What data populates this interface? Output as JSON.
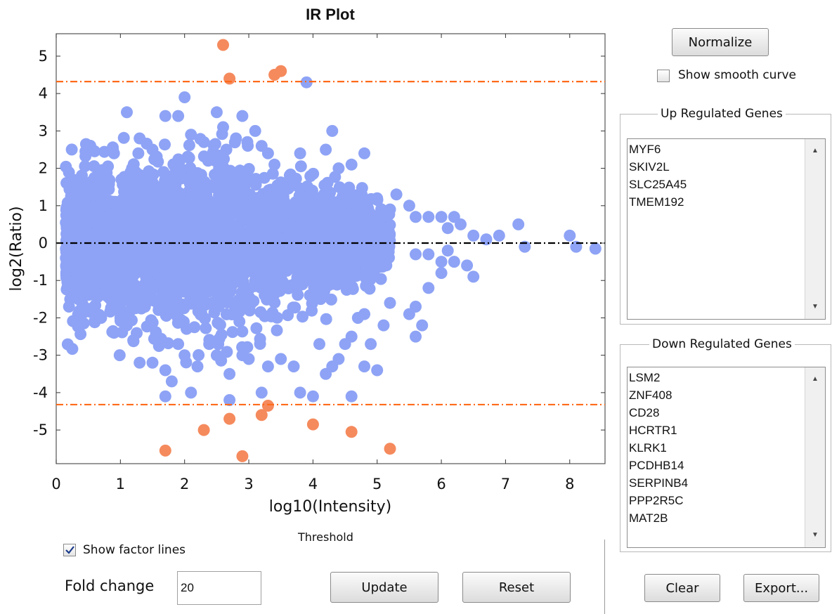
{
  "chart_data": {
    "type": "scatter",
    "title": "IR Plot",
    "xlabel": "log10(Intensity)",
    "ylabel": "log2(Ratio)",
    "xlim": [
      0,
      8.55
    ],
    "ylim": [
      -5.9,
      5.6
    ],
    "xticks": [
      "0",
      "1",
      "2",
      "3",
      "4",
      "5",
      "6",
      "7",
      "8"
    ],
    "yticks": [
      "5",
      "4",
      "3",
      "2",
      "1",
      "0",
      "-1",
      "-2",
      "-3",
      "-4",
      "-5"
    ],
    "grid": false,
    "threshold_lines": {
      "upper": 4.32,
      "lower": -4.32,
      "zero": 0
    },
    "series": [
      {
        "color": "#8ea3f5",
        "cloud": {
          "x_min": 0.15,
          "x_max": 5.2,
          "y_min": -3.3,
          "y_max": 3.1,
          "approx_count": 3000
        },
        "points": [
          [
            0.15,
            -0.4
          ],
          [
            0.3,
            0.2
          ],
          [
            0.6,
            0.9
          ],
          [
            0.9,
            2.4
          ],
          [
            1.1,
            3.5
          ],
          [
            1.3,
            2.8
          ],
          [
            1.5,
            2.5
          ],
          [
            1.7,
            3.4
          ],
          [
            1.9,
            3.4
          ],
          [
            2.0,
            3.9
          ],
          [
            2.1,
            2.9
          ],
          [
            2.3,
            2.7
          ],
          [
            2.5,
            3.5
          ],
          [
            2.6,
            3.1
          ],
          [
            2.8,
            2.8
          ],
          [
            2.9,
            3.4
          ],
          [
            3.1,
            3.0
          ],
          [
            3.2,
            2.6
          ],
          [
            3.3,
            2.4
          ],
          [
            3.4,
            2.1
          ],
          [
            3.8,
            2.4
          ],
          [
            3.9,
            4.3
          ],
          [
            4.2,
            2.5
          ],
          [
            4.3,
            3.0
          ],
          [
            4.4,
            2.0
          ],
          [
            4.6,
            2.1
          ],
          [
            4.8,
            2.4
          ],
          [
            5.0,
            1.2
          ],
          [
            5.2,
            0.9
          ],
          [
            5.3,
            1.3
          ],
          [
            5.5,
            1.0
          ],
          [
            5.6,
            0.7
          ],
          [
            5.8,
            0.7
          ],
          [
            6.0,
            0.7
          ],
          [
            6.1,
            0.4
          ],
          [
            6.2,
            0.7
          ],
          [
            6.3,
            0.5
          ],
          [
            6.5,
            0.2
          ],
          [
            6.7,
            0.1
          ],
          [
            6.9,
            0.2
          ],
          [
            7.2,
            0.5
          ],
          [
            7.3,
            -0.1
          ],
          [
            8.0,
            0.2
          ],
          [
            8.1,
            -0.1
          ],
          [
            8.4,
            -0.15
          ],
          [
            5.6,
            -0.3
          ],
          [
            5.8,
            -0.3
          ],
          [
            6.0,
            -0.5
          ],
          [
            6.1,
            -0.2
          ],
          [
            6.2,
            -0.5
          ],
          [
            6.4,
            -0.6
          ],
          [
            6.5,
            -0.9
          ],
          [
            6.0,
            -0.8
          ],
          [
            5.8,
            -1.2
          ],
          [
            5.6,
            -1.7
          ],
          [
            5.5,
            -1.9
          ],
          [
            5.7,
            -2.2
          ],
          [
            5.6,
            -2.5
          ],
          [
            5.2,
            -1.6
          ],
          [
            5.1,
            -2.2
          ],
          [
            4.9,
            -2.7
          ],
          [
            4.8,
            -1.9
          ],
          [
            4.7,
            -2.0
          ],
          [
            4.6,
            -2.5
          ],
          [
            4.5,
            -2.7
          ],
          [
            4.4,
            -3.1
          ],
          [
            4.3,
            -3.3
          ],
          [
            4.2,
            -3.5
          ],
          [
            4.1,
            -2.7
          ],
          [
            4.0,
            -4.1
          ],
          [
            3.8,
            -4.0
          ],
          [
            3.7,
            -3.3
          ],
          [
            3.5,
            -3.1
          ],
          [
            3.3,
            -3.3
          ],
          [
            3.2,
            -4.0
          ],
          [
            3.0,
            -3.1
          ],
          [
            2.9,
            -3.0
          ],
          [
            2.7,
            -3.5
          ],
          [
            2.5,
            -3.0
          ],
          [
            2.2,
            -3.3
          ],
          [
            2.0,
            -3.0
          ],
          [
            1.9,
            -2.7
          ],
          [
            1.7,
            -3.4
          ],
          [
            1.7,
            -4.1
          ],
          [
            1.8,
            -3.7
          ],
          [
            1.5,
            -3.2
          ],
          [
            1.3,
            -3.2
          ],
          [
            1.2,
            -2.6
          ],
          [
            1.1,
            -2.2
          ],
          [
            1.0,
            -2.0
          ],
          [
            0.9,
            -2.4
          ],
          [
            0.7,
            -2.0
          ],
          [
            0.4,
            -1.3
          ],
          [
            2.1,
            -4.0
          ],
          [
            2.7,
            -4.2
          ],
          [
            4.6,
            -4.1
          ],
          [
            4.8,
            -3.3
          ],
          [
            5.0,
            -3.4
          ]
        ]
      },
      {
        "color": "#f58a5d",
        "points": [
          [
            2.6,
            5.3
          ],
          [
            2.7,
            4.4
          ],
          [
            3.4,
            4.5
          ],
          [
            3.5,
            4.6
          ],
          [
            3.3,
            -4.35
          ],
          [
            3.2,
            -4.6
          ],
          [
            2.7,
            -4.7
          ],
          [
            2.3,
            -5.0
          ],
          [
            4.0,
            -4.85
          ],
          [
            4.6,
            -5.05
          ],
          [
            1.7,
            -5.55
          ],
          [
            2.9,
            -5.7
          ],
          [
            5.2,
            -5.5
          ]
        ]
      }
    ]
  },
  "controls": {
    "normalize_label": "Normalize",
    "smooth_curve_label": "Show smooth curve",
    "smooth_curve_checked": false,
    "show_factor_lines_label": "Show factor lines",
    "show_factor_lines_checked": true,
    "threshold_label": "Threshold",
    "fold_change_label": "Fold change",
    "fold_change_value": "20",
    "update_label": "Update",
    "reset_label": "Reset",
    "clear_label": "Clear",
    "export_label": "Export..."
  },
  "up_regulated": {
    "title": "Up Regulated Genes",
    "genes": [
      "MYF6",
      "SKIV2L",
      "SLC25A45",
      "TMEM192"
    ]
  },
  "down_regulated": {
    "title": "Down Regulated Genes",
    "genes": [
      "LSM2",
      "ZNF408",
      "CD28",
      "HCRTR1",
      "KLRK1",
      "PCDHB14",
      "SERPINB4",
      "PPP2R5C",
      "MAT2B"
    ]
  },
  "colors": {
    "points_normal": "#8ea3f5",
    "points_outlier": "#f58a5d",
    "threshold_line": "#ff6a1a",
    "zero_line": "#000000"
  }
}
